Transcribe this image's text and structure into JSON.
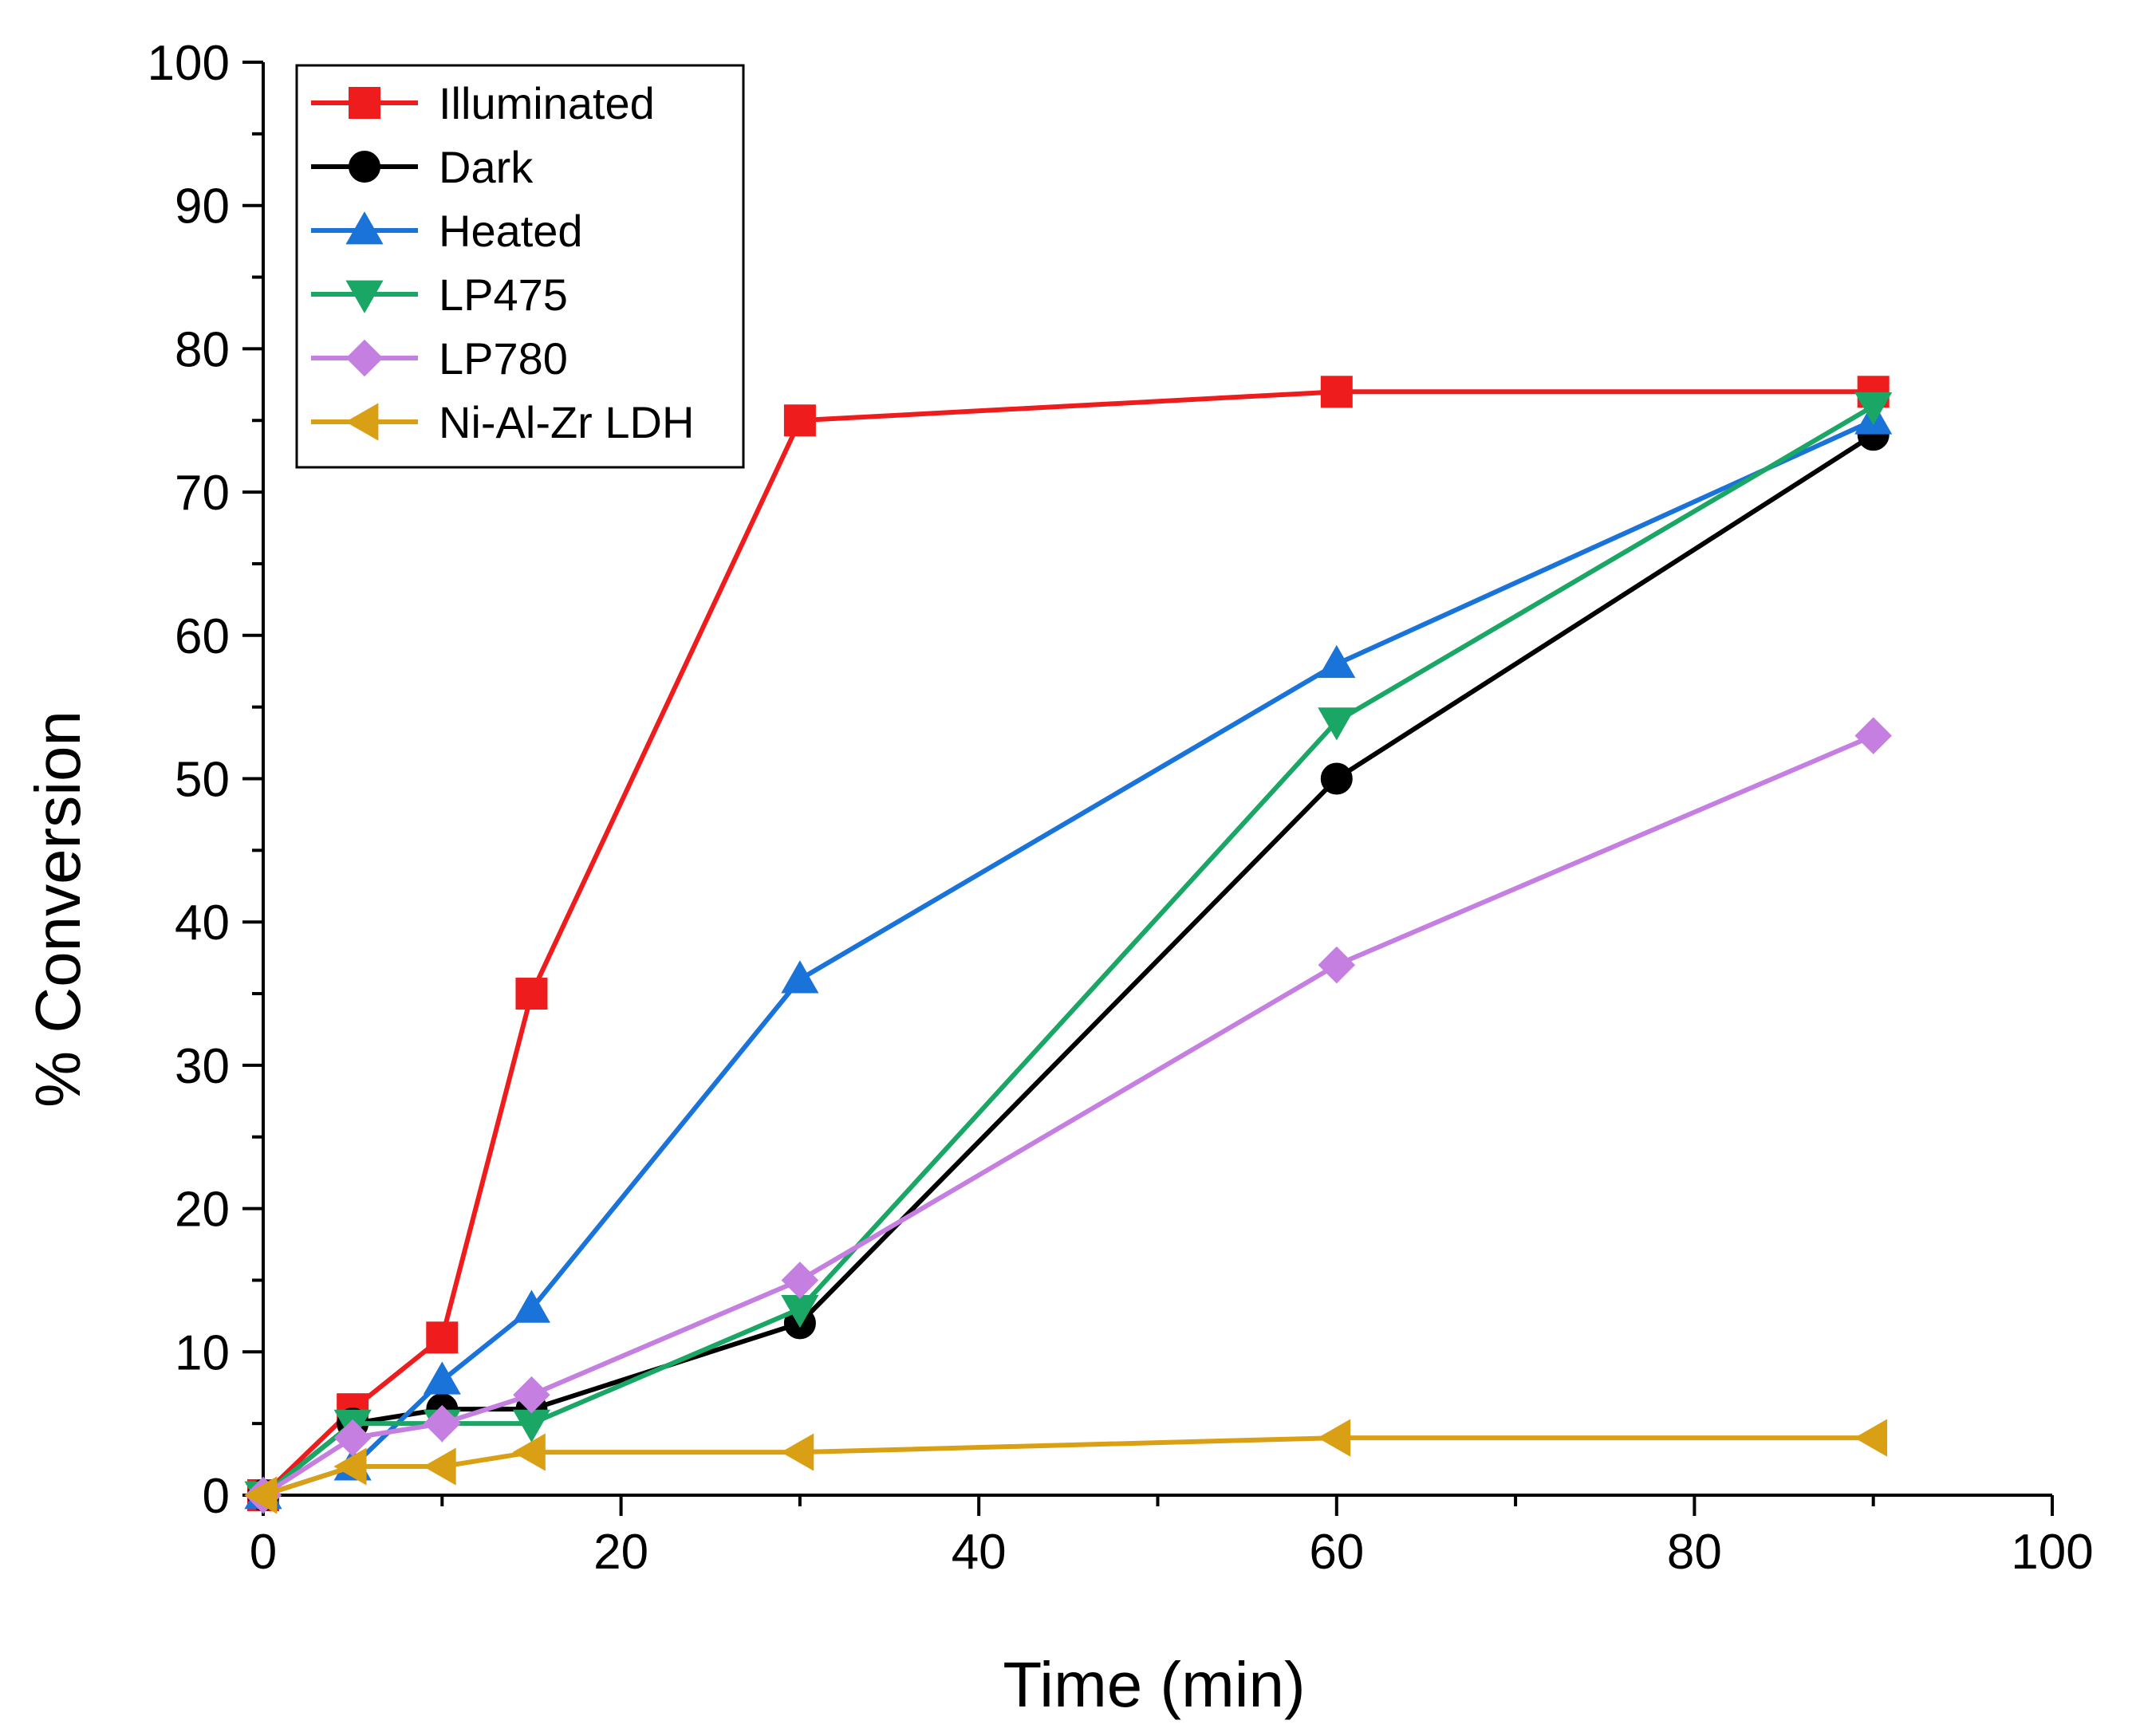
{
  "chart_data": {
    "type": "line",
    "title": "",
    "xlabel": "Time (min)",
    "ylabel": "% Conversion",
    "xlim": [
      0,
      100
    ],
    "ylim": [
      0,
      100
    ],
    "x_ticks": [
      0,
      20,
      40,
      60,
      80,
      100
    ],
    "y_ticks": [
      0,
      10,
      20,
      30,
      40,
      50,
      60,
      70,
      80,
      90,
      100
    ],
    "grid": false,
    "legend_position": "top-left",
    "series": [
      {
        "name": "Illuminated",
        "color": "#ee1c1c",
        "marker": "square",
        "x": [
          0,
          5,
          10,
          15,
          30,
          60,
          90
        ],
        "y": [
          0,
          6,
          11,
          35,
          75,
          77,
          77
        ]
      },
      {
        "name": "Dark",
        "color": "#000000",
        "marker": "circle",
        "x": [
          0,
          5,
          10,
          15,
          30,
          60,
          90
        ],
        "y": [
          0,
          5,
          6,
          6,
          12,
          50,
          74
        ]
      },
      {
        "name": "Heated",
        "color": "#1a73d9",
        "marker": "triangle-up",
        "x": [
          0,
          5,
          10,
          15,
          30,
          60,
          90
        ],
        "y": [
          0,
          2,
          8,
          13,
          36,
          58,
          75
        ]
      },
      {
        "name": "LP475",
        "color": "#1aa665",
        "marker": "triangle-down",
        "x": [
          0,
          5,
          10,
          15,
          30,
          60,
          90
        ],
        "y": [
          0,
          5,
          5,
          5,
          13,
          54,
          76
        ]
      },
      {
        "name": "LP780",
        "color": "#c47fe0",
        "marker": "diamond",
        "x": [
          0,
          5,
          10,
          15,
          30,
          60,
          90
        ],
        "y": [
          0,
          4,
          5,
          7,
          15,
          37,
          53
        ]
      },
      {
        "name": "Ni-Al-Zr LDH",
        "color": "#d9a015",
        "marker": "triangle-left",
        "x": [
          0,
          5,
          10,
          15,
          30,
          60,
          90
        ],
        "y": [
          0,
          2,
          2,
          3,
          3,
          4,
          4
        ]
      }
    ]
  }
}
